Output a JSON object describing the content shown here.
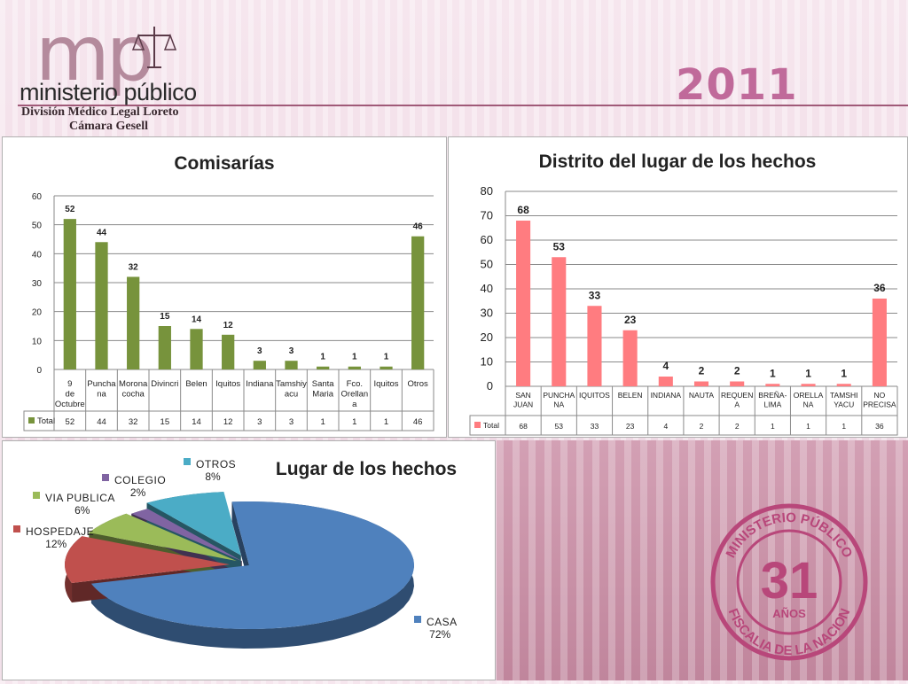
{
  "header": {
    "logo_letters": "mp",
    "logo_word": "ministerio público",
    "subtitle_line1": "División Médico Legal Loreto",
    "subtitle_line2": "Cámara Gesell",
    "year": "2011"
  },
  "seal": {
    "top_text": "MINISTERIO PÚBLICO",
    "number": "31",
    "years": "AÑOS",
    "bottom_text": "FISCALIA DE LA NACION"
  },
  "colors": {
    "bar1": "#77933c",
    "bar2": "#ff7c80",
    "pie": [
      "#4f81bd",
      "#c0504d",
      "#9bbb59",
      "#8064a2",
      "#4bacc6"
    ]
  },
  "chart_data": [
    {
      "type": "bar",
      "title": "Comisarías",
      "categories": [
        "9 de Octubre",
        "Puncha na",
        "Morona cocha",
        "Divincri",
        "Belen",
        "Iquitos",
        "Indiana",
        "Tamshiy acu",
        "Santa Maria",
        "Fco. Orellan a",
        "Iquitos",
        "Otros"
      ],
      "series": [
        {
          "name": "Total",
          "values": [
            52,
            44,
            32,
            15,
            14,
            12,
            3,
            3,
            1,
            1,
            1,
            46
          ]
        }
      ],
      "ylim": [
        0,
        60
      ],
      "yticks": [
        0,
        10,
        20,
        30,
        40,
        50,
        60
      ],
      "grid": true,
      "legend": "data-table"
    },
    {
      "type": "bar",
      "title": "Distrito del lugar de los hechos",
      "categories": [
        "SAN JUAN",
        "PUNCHA NA",
        "IQUITOS",
        "BELEN",
        "INDIANA",
        "NAUTA",
        "REQUEN A",
        "BREÑA- LIMA",
        "ORELLA NA",
        "TAMSHI YACU",
        "NO PRECISA"
      ],
      "series": [
        {
          "name": "Total",
          "values": [
            68,
            53,
            33,
            23,
            4,
            2,
            2,
            1,
            1,
            1,
            36
          ]
        }
      ],
      "ylim": [
        0,
        80
      ],
      "yticks": [
        0,
        10,
        20,
        30,
        40,
        50,
        60,
        70,
        80
      ],
      "grid": true,
      "legend": "data-table"
    },
    {
      "type": "pie",
      "title": "Lugar de los hechos",
      "slices": [
        {
          "label": "CASA",
          "value": "72%",
          "share": 72
        },
        {
          "label": "HOSPEDAJE",
          "value": "12%",
          "share": 12
        },
        {
          "label": "VIA PUBLICA",
          "value": "6%",
          "share": 6
        },
        {
          "label": "COLEGIO",
          "value": "2%",
          "share": 2
        },
        {
          "label": "OTROS",
          "value": "8%",
          "share": 8
        }
      ],
      "legend": "labels"
    }
  ]
}
